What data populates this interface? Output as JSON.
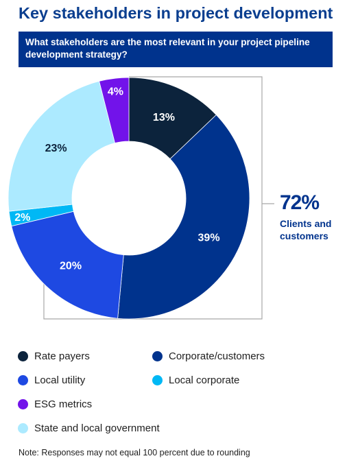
{
  "title": "Key stakeholders in project development",
  "question": "What stakeholders are the most relevant in your project pipeline development strategy?",
  "callout": {
    "value": "72%",
    "label": "Clients and customers"
  },
  "note": "Note: Responses may not equal 100 percent due to rounding",
  "chart_data": {
    "type": "pie",
    "style": "donut",
    "start": "12 o'clock, clockwise",
    "slices": [
      {
        "name": "Rate payers",
        "value": 13,
        "label": "13%",
        "color": "#0c233c",
        "label_color": "#ffffff"
      },
      {
        "name": "Corporate/customers",
        "value": 39,
        "label": "39%",
        "color": "#00338d",
        "label_color": "#ffffff"
      },
      {
        "name": "Local utility",
        "value": 20,
        "label": "20%",
        "color": "#1e49e2",
        "label_color": "#ffffff"
      },
      {
        "name": "Local corporate",
        "value": 2,
        "label": "2%",
        "color": "#00b8f5",
        "label_color": "#ffffff"
      },
      {
        "name": "State and local government",
        "value": 23,
        "label": "23%",
        "color": "#acEAff",
        "label_color": "#0c233c"
      },
      {
        "name": "ESG metrics",
        "value": 4,
        "label": "4%",
        "color": "#7213ea",
        "label_color": "#ffffff"
      }
    ],
    "legend": [
      "Rate payers",
      "Corporate/customers",
      "Local utility",
      "Local corporate",
      "ESG metrics",
      "State and local government"
    ],
    "legend_placement": "bottom",
    "annotation": {
      "text": "72% Clients and customers",
      "groups": [
        "Rate payers",
        "Corporate/customers",
        "Local utility"
      ],
      "style": "bracket"
    }
  }
}
